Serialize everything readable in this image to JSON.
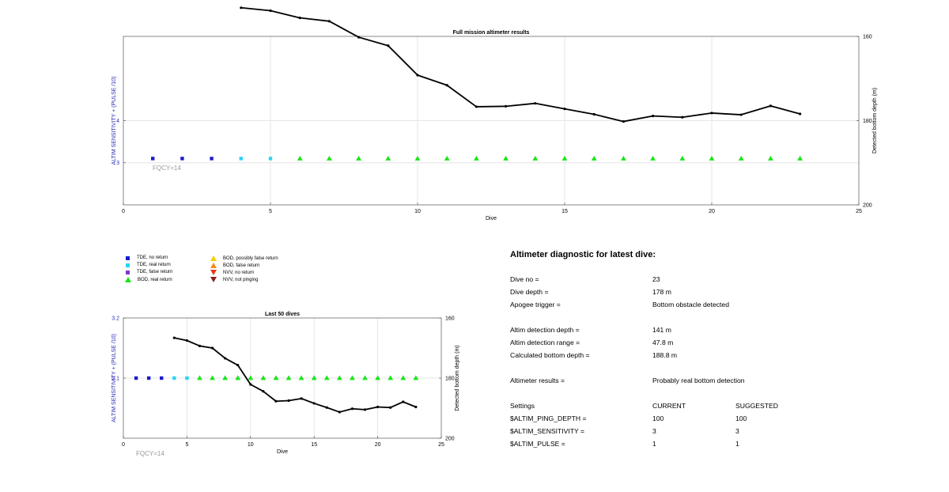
{
  "chart_data": [
    {
      "type": "line",
      "title": "Full mission altimeter results",
      "xlabel": "Dive",
      "ylabel_left": "ALTIM SENSITIVITY + (PULSE /10)",
      "ylabel_right": "Detected bottom depth (m)",
      "xlim": [
        0,
        25
      ],
      "xticks": [
        0,
        5,
        10,
        15,
        20,
        25
      ],
      "ylim_left": [
        2,
        6
      ],
      "yticks_left": [
        3,
        4
      ],
      "ylim_right": [
        200,
        160
      ],
      "yticks_right": [
        160,
        180,
        200
      ],
      "annotation": "FQCY=14",
      "depth_series": {
        "x": [
          4,
          5,
          6,
          7,
          8,
          9,
          10,
          11,
          12,
          13,
          14,
          15,
          16,
          17,
          18,
          19,
          20,
          21,
          22,
          23
        ],
        "y": [
          153.2,
          153.9,
          155.6,
          156.4,
          160.2,
          162.2,
          169.2,
          171.6,
          176.7,
          176.6,
          175.9,
          177.2,
          178.5,
          180.2,
          178.9,
          179.2,
          178.2,
          178.6,
          176.5,
          178.4
        ]
      },
      "marker_series": [
        {
          "name": "TDE, no return",
          "x": [
            1,
            2,
            3
          ],
          "y": [
            3.1,
            3.1,
            3.1
          ]
        },
        {
          "name": "TDE, real return",
          "x": [
            4,
            5
          ],
          "y": [
            3.1,
            3.1
          ]
        },
        {
          "name": "BOD, real return",
          "x": [
            6,
            7,
            8,
            9,
            10,
            11,
            12,
            13,
            14,
            15,
            16,
            17,
            18,
            19,
            20,
            21,
            22,
            23
          ],
          "y": [
            3.1,
            3.1,
            3.1,
            3.1,
            3.1,
            3.1,
            3.1,
            3.1,
            3.1,
            3.1,
            3.1,
            3.1,
            3.1,
            3.1,
            3.1,
            3.1,
            3.1,
            3.1
          ]
        }
      ]
    },
    {
      "type": "line",
      "title": "Last 50 dives",
      "xlabel": "Dive",
      "ylabel_left": "ALTIM SENSITIVITY + (PULSE /10)",
      "ylabel_right": "Detected bottom depth (m)",
      "xlim": [
        0,
        25
      ],
      "xticks": [
        0,
        5,
        10,
        15,
        20,
        25
      ],
      "ylim_left": [
        3,
        3.2
      ],
      "yticks_left": [
        3.1,
        3.2
      ],
      "ylim_right": [
        200,
        160
      ],
      "yticks_right": [
        160,
        180,
        200
      ],
      "annotation": "FQCY=14",
      "depth_series": {
        "x": [
          4,
          5,
          6,
          7,
          8,
          9,
          10,
          11,
          12,
          13,
          14,
          15,
          16,
          17,
          18,
          19,
          20,
          21,
          22,
          23
        ],
        "y": [
          166.6,
          167.5,
          169.3,
          170.0,
          173.4,
          175.7,
          182.1,
          184.4,
          187.7,
          187.5,
          186.8,
          188.4,
          189.8,
          191.3,
          190.2,
          190.5,
          189.6,
          189.8,
          187.9,
          189.6
        ]
      },
      "marker_series": [
        {
          "name": "TDE, no return",
          "x": [
            1,
            2,
            3
          ],
          "y": [
            3.1,
            3.1,
            3.1
          ]
        },
        {
          "name": "TDE, real return",
          "x": [
            4,
            5
          ],
          "y": [
            3.1,
            3.1
          ]
        },
        {
          "name": "BOD, real return",
          "x": [
            6,
            7,
            8,
            9,
            10,
            11,
            12,
            13,
            14,
            15,
            16,
            17,
            18,
            19,
            20,
            21,
            22,
            23
          ],
          "y": [
            3.1,
            3.1,
            3.1,
            3.1,
            3.1,
            3.1,
            3.1,
            3.1,
            3.1,
            3.1,
            3.1,
            3.1,
            3.1,
            3.1,
            3.1,
            3.1,
            3.1,
            3.1
          ]
        }
      ]
    }
  ],
  "legend": [
    {
      "label": "TDE, no return",
      "shape": "square",
      "color": "#1a1acc"
    },
    {
      "label": "TDE, real return",
      "shape": "square",
      "color": "#2ad4f0"
    },
    {
      "label": "TDE, false return",
      "shape": "square",
      "color": "#7a3cc8"
    },
    {
      "label": "BOD, real return",
      "shape": "triangle-up",
      "color": "#19e619"
    },
    {
      "label": "BOD, possibly false return",
      "shape": "triangle-up",
      "color": "#f5d000"
    },
    {
      "label": "BOD, false return",
      "shape": "triangle-up",
      "color": "#f08c1e"
    },
    {
      "label": "NVV, no return",
      "shape": "triangle-down",
      "color": "#e83c14"
    },
    {
      "label": "NVV, not pinging",
      "shape": "triangle-down",
      "color": "#8c1e1e"
    }
  ],
  "colors": {
    "depth_line": "#000000",
    "left_axis_label": "#2828b4",
    "annotation": "#999999",
    "grid": "#e6e6e6"
  },
  "diagnostic": {
    "title": "Altimeter diagnostic for latest dive:",
    "rows": [
      {
        "label": "Dive no =",
        "value": "23"
      },
      {
        "label": "Dive depth =",
        "value": "178 m"
      },
      {
        "label": "Apogee trigger =",
        "value": "Bottom obstacle detected"
      },
      {
        "label": "Altim detection depth =",
        "value": "141 m"
      },
      {
        "label": "Altim detection range =",
        "value": "47.8 m"
      },
      {
        "label": "Calculated bottom depth =",
        "value": "188.8 m"
      },
      {
        "label": "Altimeter results =",
        "value": "Probably real bottom detection"
      }
    ],
    "settings_header": {
      "label": "Settings",
      "current": "CURRENT",
      "suggested": "SUGGESTED"
    },
    "settings": [
      {
        "label": "$ALTIM_PING_DEPTH =",
        "current": "100",
        "suggested": "100"
      },
      {
        "label": "$ALTIM_SENSITIVITY =",
        "current": "3",
        "suggested": "3"
      },
      {
        "label": "$ALTIM_PULSE =",
        "current": "1",
        "suggested": "1"
      }
    ]
  }
}
